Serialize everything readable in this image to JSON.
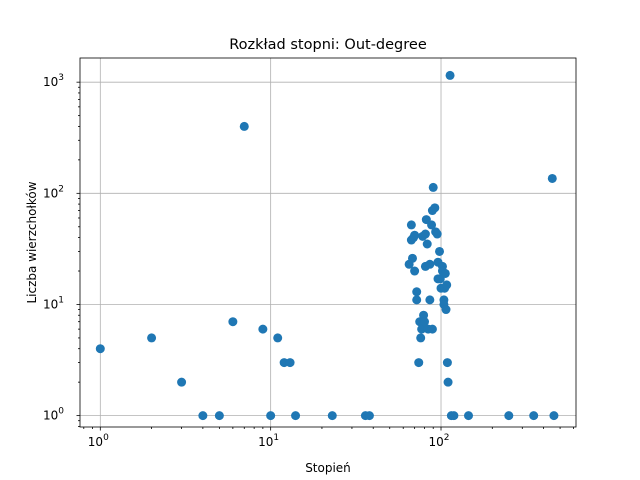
{
  "chart_data": {
    "type": "scatter",
    "title": "Rozkład stopni: Out-degree",
    "xlabel": "Stopień",
    "ylabel": "Liczba wierzchołków",
    "xscale": "log",
    "yscale": "log",
    "xlim": [
      0.76,
      620
    ],
    "ylim": [
      0.79,
      1650
    ],
    "grid": true,
    "marker_color": "#1f77b4",
    "x_ticks": [
      {
        "value": 1,
        "base": "10",
        "exp": "0"
      },
      {
        "value": 10,
        "base": "10",
        "exp": "1"
      },
      {
        "value": 100,
        "base": "10",
        "exp": "2"
      }
    ],
    "y_ticks": [
      {
        "value": 1,
        "base": "10",
        "exp": "0"
      },
      {
        "value": 10,
        "base": "10",
        "exp": "1"
      },
      {
        "value": 100,
        "base": "10",
        "exp": "2"
      },
      {
        "value": 1000,
        "base": "10",
        "exp": "3"
      }
    ],
    "points": [
      [
        1,
        4
      ],
      [
        2,
        5
      ],
      [
        3,
        2
      ],
      [
        4,
        1
      ],
      [
        5,
        1
      ],
      [
        6,
        7
      ],
      [
        7,
        400
      ],
      [
        9,
        6
      ],
      [
        10,
        1
      ],
      [
        11,
        5
      ],
      [
        12,
        3
      ],
      [
        13,
        3
      ],
      [
        14,
        1
      ],
      [
        23,
        1
      ],
      [
        36,
        1
      ],
      [
        38,
        1
      ],
      [
        65,
        23
      ],
      [
        67,
        38
      ],
      [
        67,
        52
      ],
      [
        68,
        26
      ],
      [
        69,
        40
      ],
      [
        70,
        42
      ],
      [
        70,
        20
      ],
      [
        72,
        13
      ],
      [
        72,
        11
      ],
      [
        74,
        3
      ],
      [
        75,
        7
      ],
      [
        76,
        5
      ],
      [
        77,
        6
      ],
      [
        78,
        41
      ],
      [
        79,
        8
      ],
      [
        80,
        7
      ],
      [
        81,
        43
      ],
      [
        81,
        22
      ],
      [
        82,
        58
      ],
      [
        83,
        35
      ],
      [
        84,
        6
      ],
      [
        86,
        23
      ],
      [
        86,
        11
      ],
      [
        88,
        52
      ],
      [
        89,
        6
      ],
      [
        89,
        70
      ],
      [
        90,
        113
      ],
      [
        92,
        74
      ],
      [
        93,
        45
      ],
      [
        95,
        43
      ],
      [
        96,
        17
      ],
      [
        96,
        24
      ],
      [
        98,
        30
      ],
      [
        99,
        17
      ],
      [
        100,
        14
      ],
      [
        102,
        22
      ],
      [
        102,
        20
      ],
      [
        104,
        11
      ],
      [
        104,
        10
      ],
      [
        105,
        14
      ],
      [
        106,
        19
      ],
      [
        107,
        9
      ],
      [
        108,
        15
      ],
      [
        109,
        3
      ],
      [
        110,
        2
      ],
      [
        113,
        1150
      ],
      [
        115,
        1
      ],
      [
        119,
        1
      ],
      [
        145,
        1
      ],
      [
        250,
        1
      ],
      [
        350,
        1
      ],
      [
        450,
        136
      ],
      [
        460,
        1
      ]
    ]
  }
}
